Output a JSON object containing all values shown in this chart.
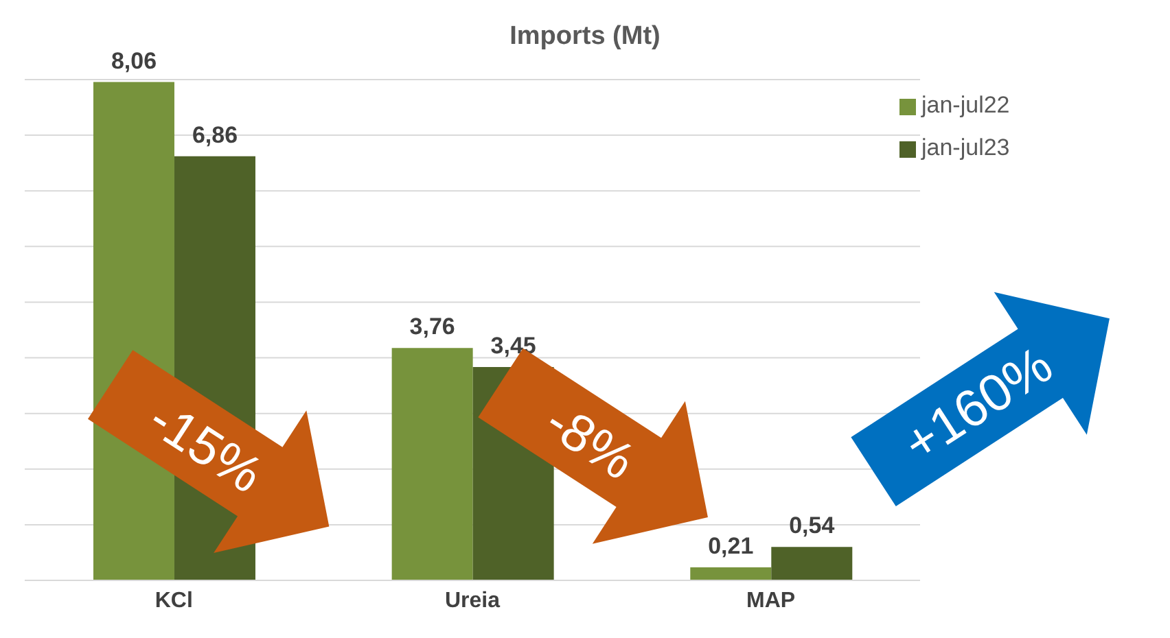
{
  "chart_data": {
    "type": "bar",
    "title": "Imports (Mt)",
    "categories": [
      "KCl",
      "Ureia",
      "MAP"
    ],
    "series": [
      {
        "name": "jan-jul22",
        "color": "#77933c",
        "values": [
          8.06,
          3.76,
          0.21
        ],
        "value_labels": [
          "8,06",
          "3,76",
          "0,21"
        ]
      },
      {
        "name": "jan-jul23",
        "color": "#4f6228",
        "values": [
          6.86,
          3.45,
          0.54
        ],
        "value_labels": [
          "6,86",
          "3,45",
          "0,54"
        ]
      }
    ],
    "tick_labels": "x",
    "grid": "y",
    "legend": "top right",
    "annotations": [
      "-15%",
      "-8%",
      "+160%"
    ]
  }
}
